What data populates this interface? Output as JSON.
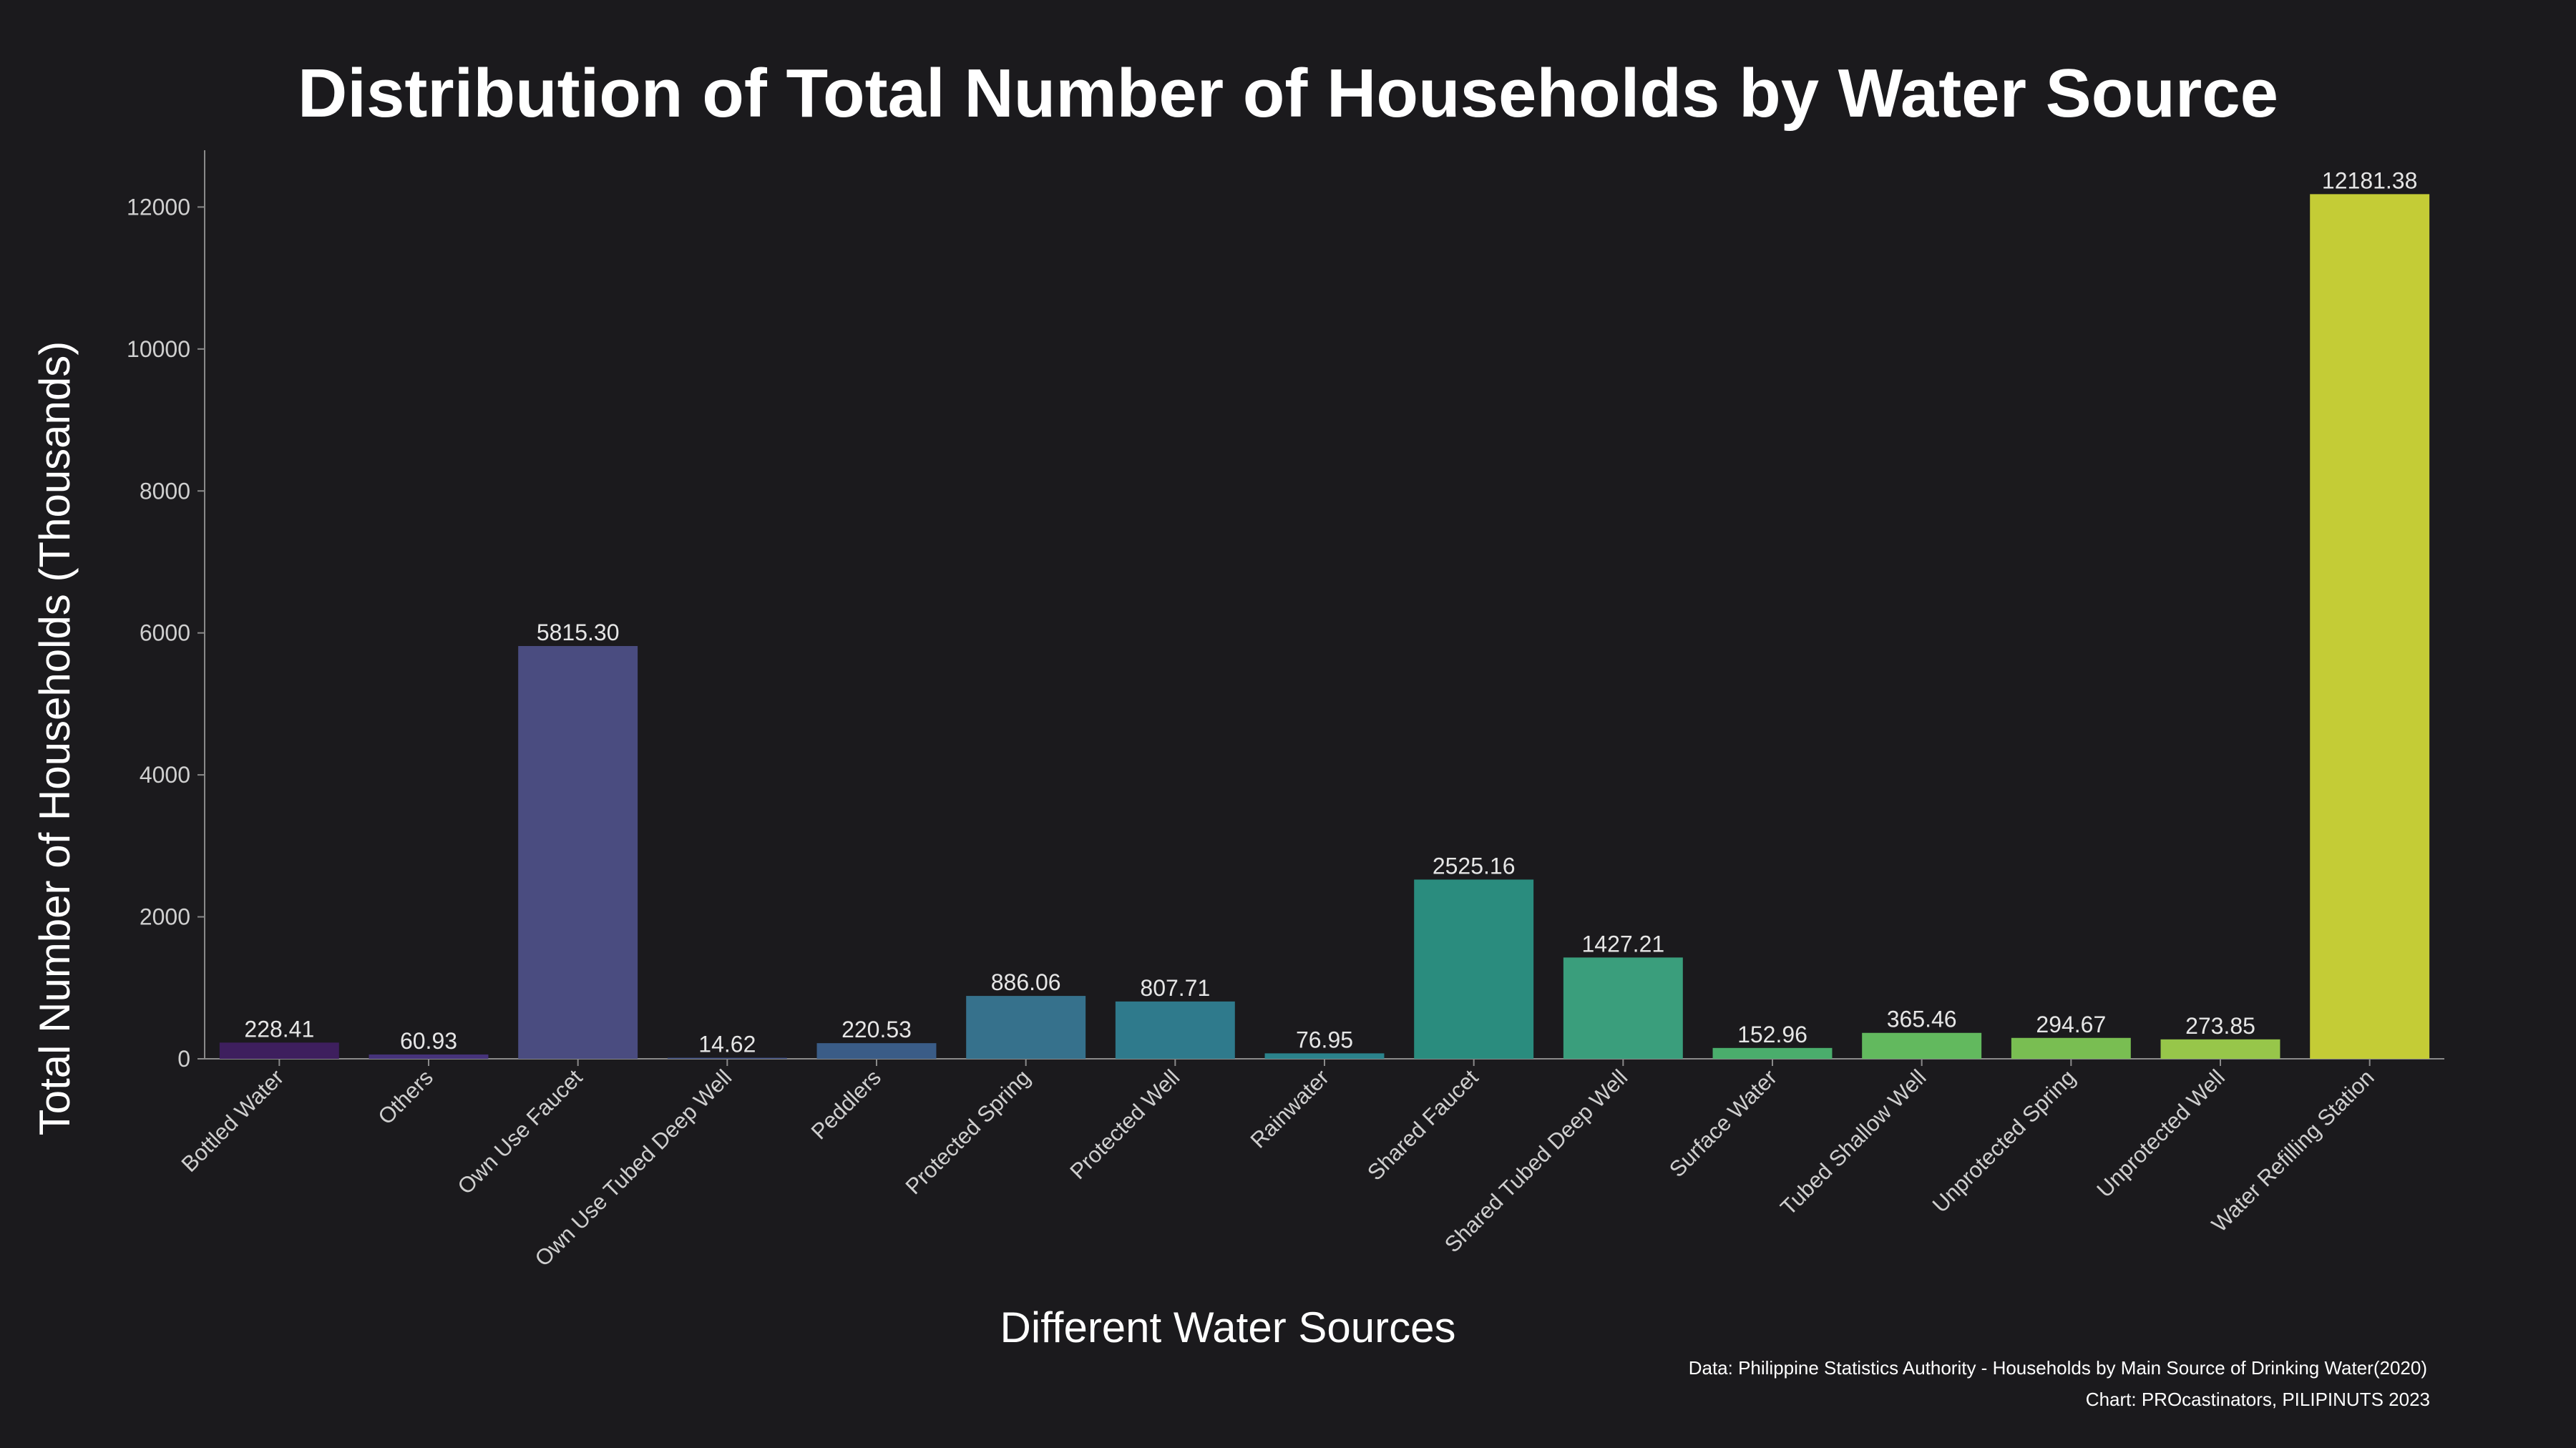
{
  "chart_data": {
    "type": "bar",
    "title": "Distribution of Total Number of Households by Water Source",
    "xlabel": "Different Water Sources",
    "ylabel": "Total Number of Households (Thousands)",
    "ylim": [
      0,
      12800
    ],
    "yticks": [
      0,
      2000,
      4000,
      6000,
      8000,
      10000,
      12000
    ],
    "grid": false,
    "categories": [
      "Bottled Water",
      "Others",
      "Own Use Faucet",
      "Own Use Tubed Deep Well",
      "Peddlers",
      "Protected Spring",
      "Protected Well",
      "Rainwater",
      "Shared Faucet",
      "Shared Tubed Deep Well",
      "Surface Water",
      "Tubed Shallow Well",
      "Unprotected Spring",
      "Unprotected Well",
      "Water Refilling Station"
    ],
    "values": [
      228.41,
      60.93,
      5815.3,
      14.62,
      220.53,
      886.06,
      807.71,
      76.95,
      2525.16,
      1427.21,
      152.96,
      365.46,
      294.67,
      273.85,
      12181.38
    ],
    "value_labels": [
      "228.41",
      "60.93",
      "5815.30",
      "14.62",
      "220.53",
      "886.06",
      "807.71",
      "76.95",
      "2525.16",
      "1427.21",
      "152.96",
      "365.46",
      "294.67",
      "273.85",
      "12181.38"
    ],
    "colors": [
      "#3e1f5e",
      "#46337a",
      "#4a4c80",
      "#3f4f84",
      "#3a5c87",
      "#36718c",
      "#2f7a8c",
      "#2b838c",
      "#2a8c7e",
      "#3a9e7c",
      "#4aad6c",
      "#62b95e",
      "#79be52",
      "#97c64a",
      "#c4cc36"
    ]
  },
  "credits": {
    "source": "Data: Philippine Statistics Authority - Households by Main Source of Drinking Water(2020)",
    "chart": "Chart: PROcastinators, PILIPINUTS 2023"
  }
}
